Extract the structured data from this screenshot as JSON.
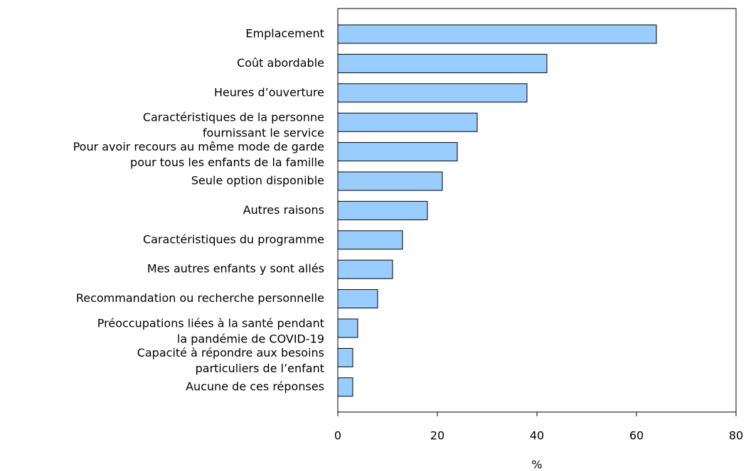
{
  "chart_data": {
    "type": "bar",
    "orientation": "horizontal",
    "x_label": "%",
    "categories": [
      [
        "Emplacement"
      ],
      [
        "Coût abordable"
      ],
      [
        "Heures d’ouverture"
      ],
      [
        "Caractéristiques de la personne",
        "fournissant le service"
      ],
      [
        "Pour avoir recours au même mode de garde",
        "pour tous les enfants de la famille"
      ],
      [
        "Seule option disponible"
      ],
      [
        "Autres raisons"
      ],
      [
        "Caractéristiques du programme"
      ],
      [
        "Mes autres enfants y sont allés"
      ],
      [
        "Recommandation ou recherche personnelle"
      ],
      [
        "Préoccupations liées à la santé pendant",
        "la pandémie de COVID-19"
      ],
      [
        "Capacité à répondre aux besoins",
        "particuliers de l’enfant"
      ],
      [
        "Aucune de ces réponses"
      ]
    ],
    "values": [
      64,
      42,
      38,
      28,
      24,
      21,
      18,
      13,
      11,
      8,
      4,
      3,
      3
    ],
    "color": "#99ccff",
    "xlim": [
      0,
      80
    ],
    "xticks": [
      0,
      20,
      40,
      60,
      80
    ]
  }
}
